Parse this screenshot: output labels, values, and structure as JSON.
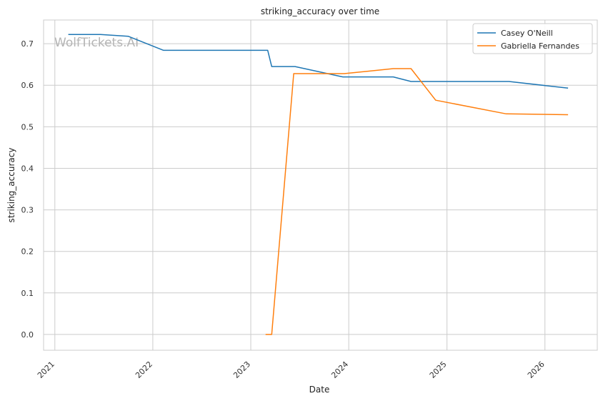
{
  "chart_data": {
    "type": "line",
    "title": "striking_accuracy over time",
    "xlabel": "Date",
    "ylabel": "striking_accuracy",
    "watermark": "WolfTickets.AI",
    "x_ticks": [
      "2021",
      "2022",
      "2023",
      "2024",
      "2025",
      "2026"
    ],
    "y_ticks": [
      "0.0",
      "0.1",
      "0.2",
      "0.3",
      "0.4",
      "0.5",
      "0.6",
      "0.7"
    ],
    "xlim": [
      "2020-11-20",
      "2026-07-15"
    ],
    "ylim": [
      -0.038,
      0.757
    ],
    "grid": true,
    "legend_position": "top-right",
    "series": [
      {
        "name": "Casey O'Neill",
        "color": "#1f77b4",
        "points": [
          [
            "2021-02-20",
            0.722
          ],
          [
            "2021-06-20",
            0.722
          ],
          [
            "2021-10-01",
            0.718
          ],
          [
            "2022-02-10",
            0.684
          ],
          [
            "2023-03-05",
            0.684
          ],
          [
            "2023-03-20",
            0.645
          ],
          [
            "2023-06-15",
            0.645
          ],
          [
            "2023-12-10",
            0.62
          ],
          [
            "2024-06-15",
            0.62
          ],
          [
            "2024-08-20",
            0.609
          ],
          [
            "2025-08-20",
            0.609
          ],
          [
            "2026-03-28",
            0.593
          ]
        ]
      },
      {
        "name": "Gabriella Fernandes",
        "color": "#ff7f0e",
        "points": [
          [
            "2023-02-25",
            0.0
          ],
          [
            "2023-03-20",
            0.0
          ],
          [
            "2023-06-10",
            0.628
          ],
          [
            "2023-12-15",
            0.628
          ],
          [
            "2024-06-15",
            0.64
          ],
          [
            "2024-08-20",
            0.64
          ],
          [
            "2024-11-20",
            0.564
          ],
          [
            "2025-08-10",
            0.531
          ],
          [
            "2026-03-28",
            0.529
          ]
        ]
      }
    ]
  }
}
